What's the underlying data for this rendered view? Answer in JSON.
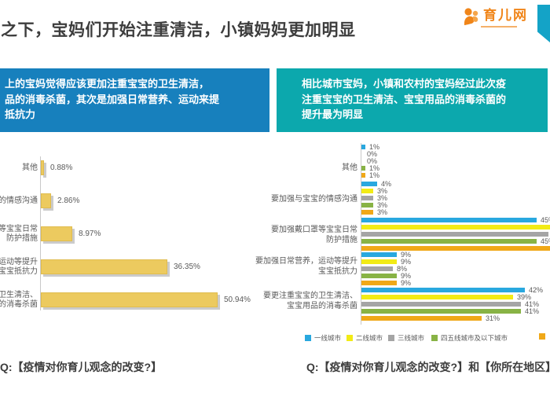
{
  "header": {
    "title": "之下，宝妈们开始注重清洁，小镇妈妈更加明显",
    "logo": {
      "text": "育儿网"
    }
  },
  "callouts": {
    "left": {
      "bg": "#1780BD",
      "text": "上的宝妈觉得应该更加注重宝宝的卫生清洁，\n品的消毒杀菌，其次是加强日常营养、运动来提\n抵抗力"
    },
    "right": {
      "bg": "#0CA8AD",
      "text": "相比城市宝妈，小镇和农村的宝妈经过此次疫\n注重宝宝的卫生清洁、宝宝用品的消毒杀菌的\n提升最为明显"
    }
  },
  "footers": {
    "left_question": "Q:【疫情对你育儿观念的改变?】",
    "right_question": "Q:【疫情对你育儿观念的改变?】和【你所在地区】"
  },
  "chart_data": [
    {
      "type": "bar",
      "orientation": "horizontal",
      "unit": "%",
      "categories": [
        "其他",
        "的情感沟通",
        "等宝宝日常\n防护措施",
        "运动等提升\n宝宝抵抗力",
        "的卫生清洁、\n的消毒杀菌"
      ],
      "values": [
        0.88,
        2.86,
        8.97,
        36.35,
        50.94
      ],
      "value_labels": [
        "0.88%",
        "2.86%",
        "8.97%",
        "36.35%",
        "50.94%"
      ],
      "bar_color": "#ECCA5F",
      "xlim": [
        0,
        60
      ],
      "grid": false
    },
    {
      "type": "bar",
      "orientation": "horizontal",
      "grouped": true,
      "unit": "%",
      "categories": [
        "其他",
        "要加强与宝宝的情感沟通",
        "要加强戴口罩等宝宝日常\n防护措施",
        "要加强日常营养，运动等提升\n宝宝抵抗力",
        "要更注重宝宝的卫生清洁、\n宝宝用品的消毒杀菌"
      ],
      "series": [
        {
          "name": "一线城市",
          "color": "#29A8DF",
          "values": [
            1,
            4,
            45,
            9,
            42
          ],
          "labels": [
            "1%",
            "4%",
            "45%",
            "9%",
            "42%"
          ]
        },
        {
          "name": "二线城市",
          "color": "#F2EB16",
          "values": [
            0,
            3,
            49,
            9,
            39
          ],
          "labels": [
            "0%",
            "3%",
            "",
            "9%",
            "39%"
          ]
        },
        {
          "name": "三线城市",
          "color": "#A5A5A5",
          "values": [
            0,
            3,
            48,
            8,
            41
          ],
          "labels": [
            "0%",
            "3%",
            "",
            "8%",
            "41%"
          ]
        },
        {
          "name": "四五线城市及以下城市",
          "color": "#88B345",
          "values": [
            1,
            3,
            45,
            9,
            41
          ],
          "labels": [
            "1%",
            "3%",
            "45%",
            "9%",
            "41%"
          ]
        },
        {
          "name": "",
          "color": "#F0A818",
          "values": [
            1,
            3,
            49,
            9,
            31
          ],
          "labels": [
            "1%",
            "3%",
            "",
            "9%",
            "31%"
          ]
        }
      ],
      "xlim": [
        0,
        48
      ],
      "grid": false,
      "legend_position": "bottom",
      "note_on_crop": "bars without labels in category 3 run past the right image edge; their values are estimates"
    }
  ]
}
